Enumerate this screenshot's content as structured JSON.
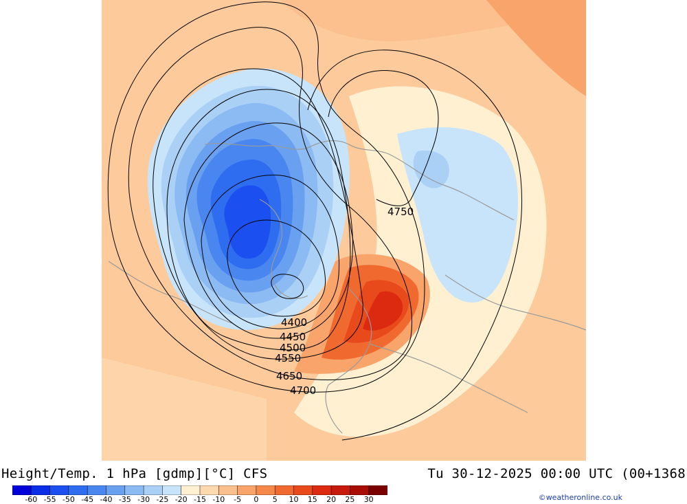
{
  "title": "Height/Temp. 1 hPa [gdmp][°C] CFS",
  "timestamp": "Tu 30-12-2025 00:00 UTC (00+1368",
  "copyright": "©weatheronline.co.uk",
  "contour_labels": {
    "c4400": "4400",
    "c4450": "4450",
    "c4500": "4500",
    "c4550": "4550",
    "c4650": "4650",
    "c4700": "4700",
    "c4750": "4750"
  },
  "colorbar": {
    "labels": [
      "-60",
      "-55",
      "-50",
      "-45",
      "-40",
      "-35",
      "-30",
      "-25",
      "-20",
      "-15",
      "-10",
      "-5",
      "0",
      "5",
      "10",
      "15",
      "20",
      "25",
      "30"
    ],
    "colors": [
      "#0000d8",
      "#0a2ee6",
      "#1b4ff0",
      "#2e6cf0",
      "#4a86f0",
      "#6aa0f0",
      "#8cbaf2",
      "#aad0f6",
      "#c8e4fa",
      "#fff0d2",
      "#fdd9b0",
      "#fcc08e",
      "#f9a46a",
      "#f6884a",
      "#f06a30",
      "#e84a1c",
      "#dc2a10",
      "#c81a0a",
      "#a80e06",
      "#7a0000"
    ]
  },
  "colors": {
    "coast": "#9a9a9a",
    "contour": "#000000",
    "background_warm": "#fcc08e"
  }
}
